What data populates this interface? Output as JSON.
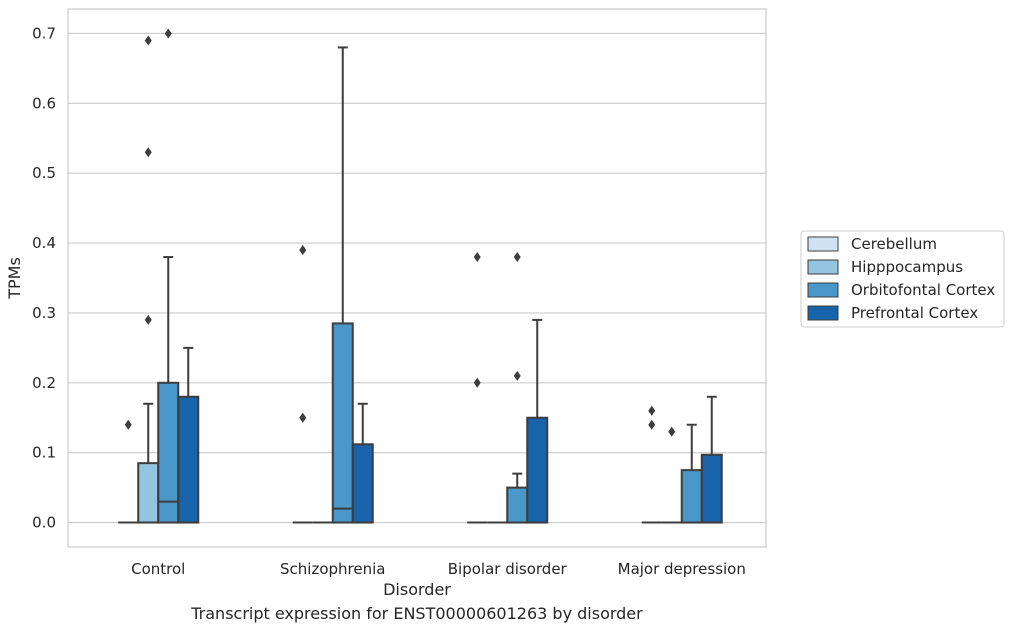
{
  "chart_data": {
    "type": "box",
    "xlabel": "Disorder",
    "ylabel": "TPMs",
    "ylim": [
      -0.035,
      0.735
    ],
    "yticks": [
      "0.0",
      "0.1",
      "0.2",
      "0.3",
      "0.4",
      "0.5",
      "0.6",
      "0.7"
    ],
    "grid": true,
    "legend_position": "right",
    "categories": [
      "Control",
      "Schizophrenia",
      "Bipolar disorder",
      "Major depression"
    ],
    "series": [
      {
        "name": "Cerebellum",
        "color": "#d0e1f2",
        "boxes": [
          {
            "q1": 0,
            "median": 0,
            "q3": 0,
            "whisker_low": 0,
            "whisker_high": 0,
            "outliers": [
              0.14
            ]
          },
          {
            "q1": 0,
            "median": 0,
            "q3": 0,
            "whisker_low": 0,
            "whisker_high": 0,
            "outliers": [
              0.15,
              0.39
            ]
          },
          {
            "q1": 0,
            "median": 0,
            "q3": 0,
            "whisker_low": 0,
            "whisker_high": 0,
            "outliers": [
              0.2,
              0.38
            ]
          },
          {
            "q1": 0,
            "median": 0,
            "q3": 0,
            "whisker_low": 0,
            "whisker_high": 0,
            "outliers": [
              0.14,
              0.16
            ]
          }
        ]
      },
      {
        "name": "Hipppocampus",
        "color": "#94c4df",
        "boxes": [
          {
            "q1": 0,
            "median": 0,
            "q3": 0.085,
            "whisker_low": 0,
            "whisker_high": 0.17,
            "outliers": [
              0.29,
              0.53,
              0.69
            ]
          },
          {
            "q1": 0,
            "median": 0,
            "q3": 0,
            "whisker_low": 0,
            "whisker_high": 0,
            "outliers": []
          },
          {
            "q1": 0,
            "median": 0,
            "q3": 0,
            "whisker_low": 0,
            "whisker_high": 0,
            "outliers": []
          },
          {
            "q1": 0,
            "median": 0,
            "q3": 0,
            "whisker_low": 0,
            "whisker_high": 0,
            "outliers": [
              0.13
            ]
          }
        ]
      },
      {
        "name": "Orbitofontal Cortex",
        "color": "#4a98c9",
        "boxes": [
          {
            "q1": 0,
            "median": 0.03,
            "q3": 0.2,
            "whisker_low": 0,
            "whisker_high": 0.38,
            "outliers": [
              0.7
            ]
          },
          {
            "q1": 0,
            "median": 0.02,
            "q3": 0.285,
            "whisker_low": 0,
            "whisker_high": 0.68,
            "outliers": []
          },
          {
            "q1": 0,
            "median": 0,
            "q3": 0.05,
            "whisker_low": 0,
            "whisker_high": 0.07,
            "outliers": [
              0.21,
              0.38
            ]
          },
          {
            "q1": 0,
            "median": 0,
            "q3": 0.075,
            "whisker_low": 0,
            "whisker_high": 0.14,
            "outliers": []
          }
        ]
      },
      {
        "name": "Prefrontal Cortex",
        "color": "#1764ab",
        "boxes": [
          {
            "q1": 0,
            "median": 0,
            "q3": 0.18,
            "whisker_low": 0,
            "whisker_high": 0.25,
            "outliers": []
          },
          {
            "q1": 0,
            "median": 0,
            "q3": 0.112,
            "whisker_low": 0,
            "whisker_high": 0.17,
            "outliers": []
          },
          {
            "q1": 0,
            "median": 0,
            "q3": 0.15,
            "whisker_low": 0,
            "whisker_high": 0.29,
            "outliers": []
          },
          {
            "q1": 0,
            "median": 0,
            "q3": 0.097,
            "whisker_low": 0,
            "whisker_high": 0.18,
            "outliers": []
          }
        ]
      }
    ]
  },
  "caption": "Transcript expression for ENST00000601263 by disorder"
}
